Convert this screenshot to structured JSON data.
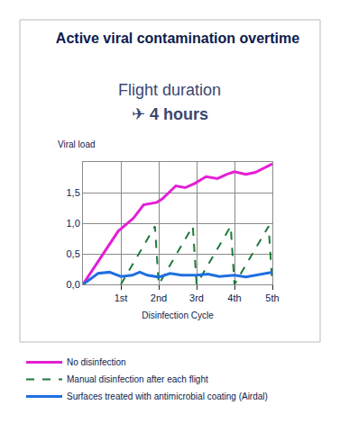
{
  "chart_data": {
    "type": "line",
    "title": "Active viral contamination overtime",
    "subtitle": [
      "Flight duration",
      "✈ 4 hours"
    ],
    "x_label": "Disinfection Cycle",
    "y_label": "Viral load",
    "xlim": [
      0,
      5
    ],
    "xticks": [
      {
        "value": 1,
        "label": "1st"
      },
      {
        "value": 2,
        "label": "2nd"
      },
      {
        "value": 3,
        "label": "3rd"
      },
      {
        "value": 4,
        "label": "4th"
      },
      {
        "value": 5,
        "label": "5th"
      }
    ],
    "ylim": [
      0,
      2
    ],
    "yticks": [
      {
        "value": 0,
        "label": "0,0"
      },
      {
        "value": 0.5,
        "label": "0,5"
      },
      {
        "value": 1,
        "label": "1,0"
      },
      {
        "value": 1.5,
        "label": "1,5"
      }
    ],
    "grid": true,
    "legend": "bottom",
    "series": [
      {
        "name": "No disinfection",
        "color": "#e31fd6",
        "line_style": "solid",
        "x": [
          0,
          0.93,
          1.33,
          1.6,
          1.95,
          2.1,
          2.45,
          2.7,
          2.95,
          3.25,
          3.55,
          3.8,
          4.0,
          4.3,
          4.55,
          5.0
        ],
        "values": [
          0,
          0.87,
          1.08,
          1.3,
          1.34,
          1.4,
          1.61,
          1.58,
          1.65,
          1.76,
          1.73,
          1.8,
          1.84,
          1.8,
          1.83,
          1.97
        ]
      },
      {
        "name": "Manual disinfection after each flight",
        "color": "#1d7a3c",
        "line_style": "dash",
        "x": [
          1,
          1.9,
          2,
          2.9,
          3,
          3.9,
          4,
          4.9,
          5
        ],
        "values": [
          0,
          0.95,
          0,
          0.95,
          0,
          0.95,
          0,
          0.95,
          0
        ]
      },
      {
        "name": "Surfaces treated with antimicrobial coating (Airdal)",
        "color": "#1f6fe0",
        "line_style": "solid",
        "x": [
          0,
          0.4,
          0.7,
          1.0,
          1.3,
          1.5,
          1.7,
          2.0,
          2.3,
          2.6,
          3.0,
          3.3,
          3.6,
          4.0,
          4.3,
          4.6,
          5.0
        ],
        "values": [
          0,
          0.18,
          0.2,
          0.13,
          0.15,
          0.2,
          0.15,
          0.12,
          0.18,
          0.15,
          0.15,
          0.17,
          0.13,
          0.15,
          0.12,
          0.15,
          0.2
        ]
      }
    ]
  }
}
